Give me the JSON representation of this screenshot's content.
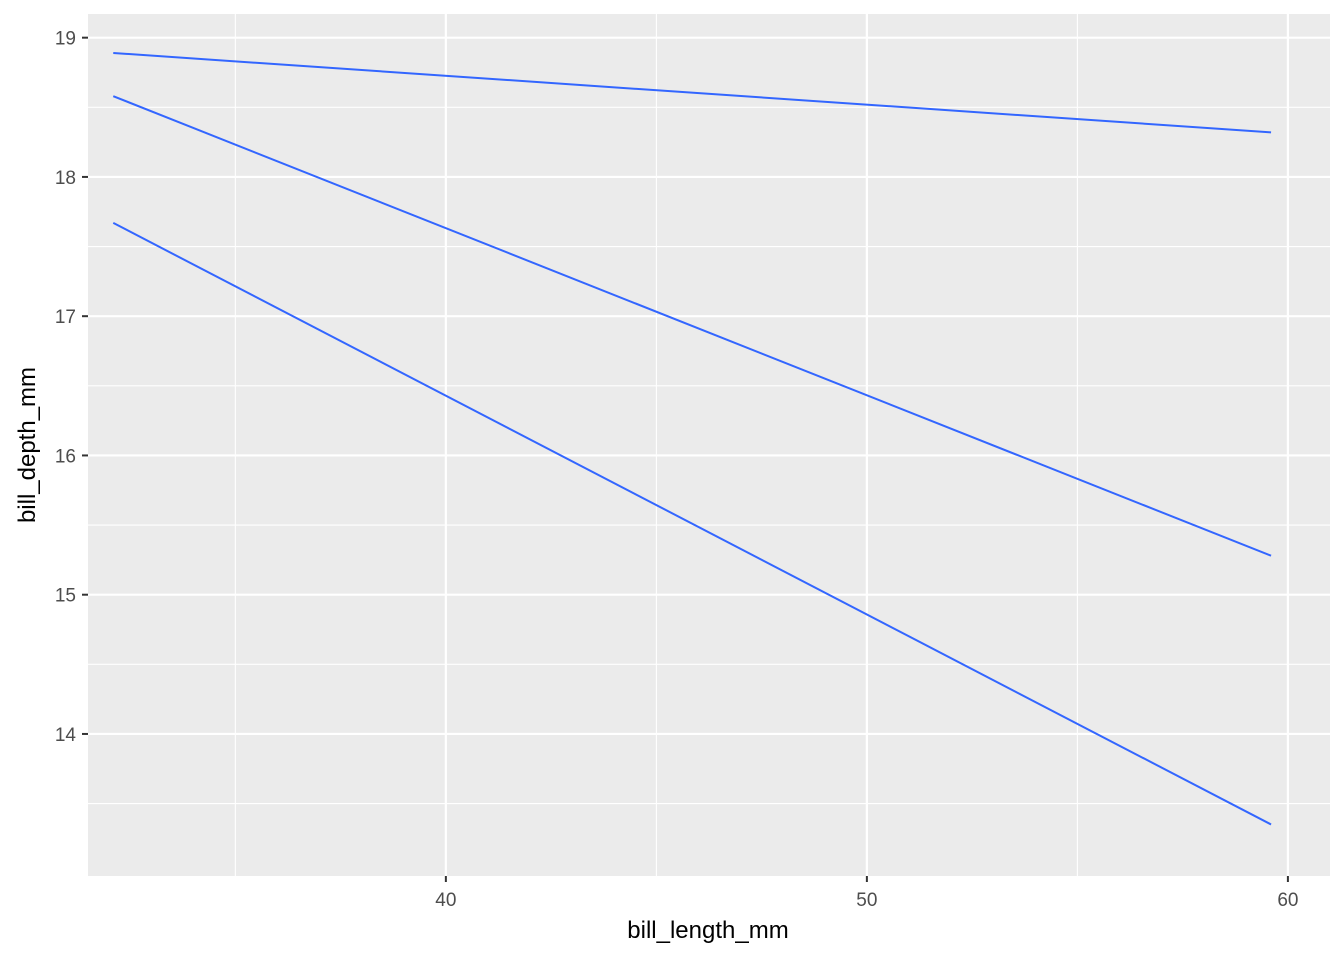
{
  "chart_data": {
    "type": "line",
    "title": "",
    "xlabel": "bill_length_mm",
    "ylabel": "bill_depth_mm",
    "xlim": [
      31.5,
      61
    ],
    "ylim": [
      12.98,
      19.17
    ],
    "x_ticks": [
      40,
      50,
      60
    ],
    "x_tick_labels": [
      "40",
      "50",
      "60"
    ],
    "x_minor_ticks": [
      35,
      45,
      55
    ],
    "y_ticks": [
      14,
      15,
      16,
      17,
      18,
      19
    ],
    "y_tick_labels": [
      "14",
      "15",
      "16",
      "17",
      "18",
      "19"
    ],
    "y_minor_ticks": [
      13.5,
      14.5,
      15.5,
      16.5,
      17.5,
      18.5
    ],
    "grid": true,
    "legend": "none",
    "colors": {
      "panel_background": "#ebebeb",
      "grid": "#ffffff",
      "line": "#3366ff",
      "tick_text": "#4d4d4d",
      "axis_title": "#000000"
    },
    "series": [
      {
        "x": [
          32.1,
          59.6
        ],
        "y": [
          18.89,
          18.32
        ]
      },
      {
        "x": [
          32.1,
          59.6
        ],
        "y": [
          18.58,
          15.28
        ]
      },
      {
        "x": [
          32.1,
          59.6
        ],
        "y": [
          17.67,
          13.35
        ]
      }
    ]
  }
}
